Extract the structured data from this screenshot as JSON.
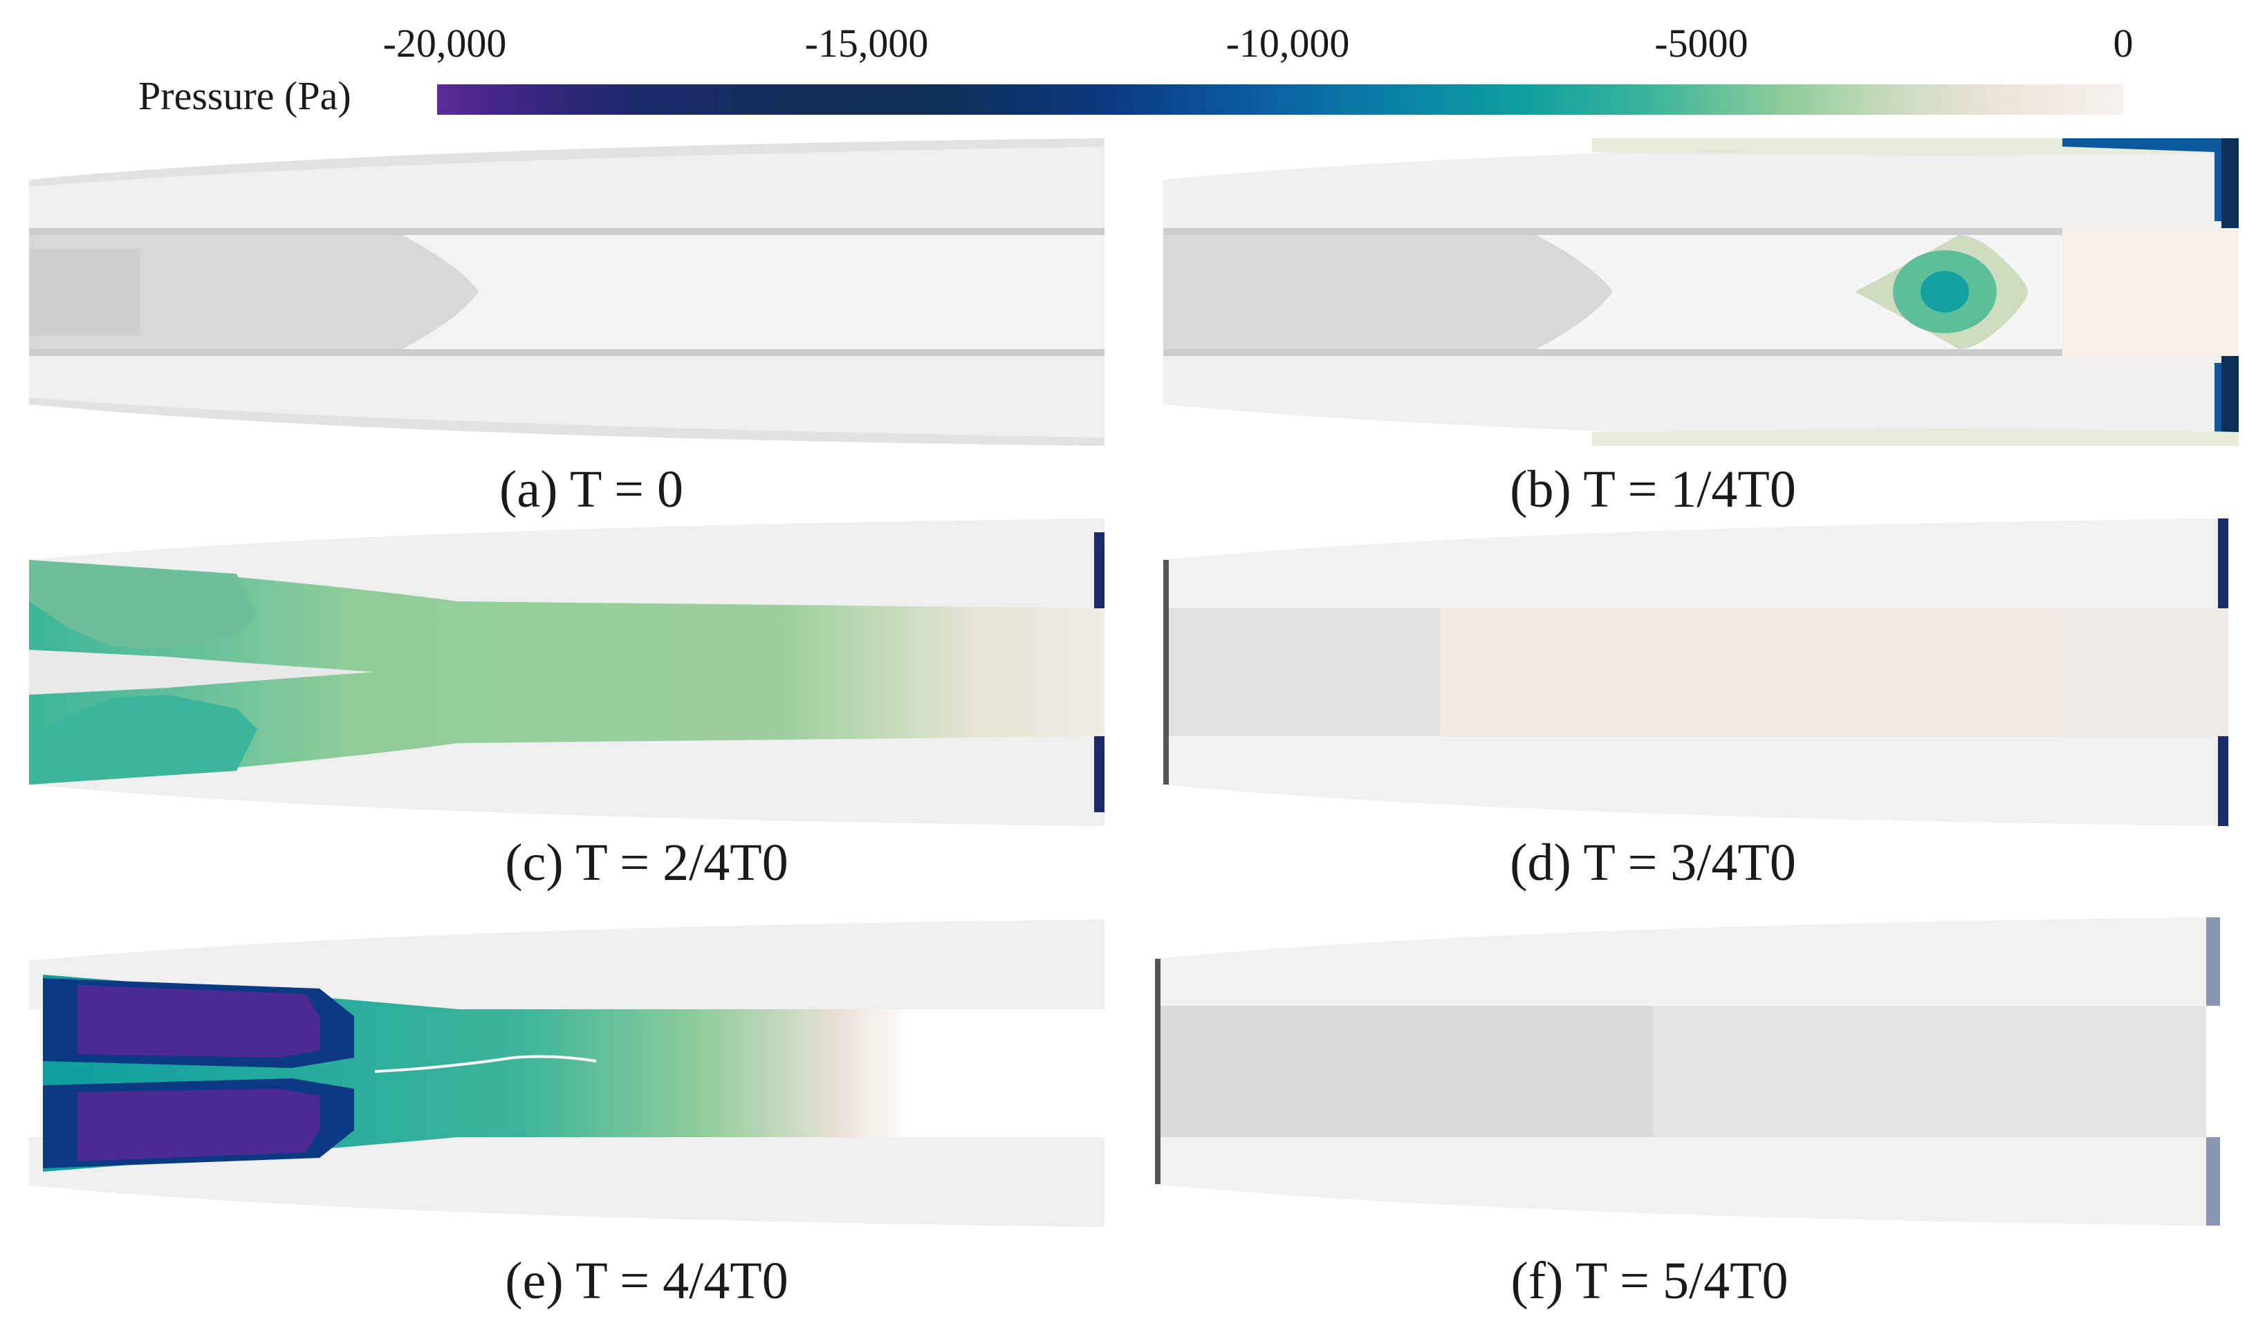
{
  "colorbar": {
    "label": "Pressure (Pa)",
    "ticks": [
      "-20,000",
      "-15,000",
      "-10,000",
      "-5000",
      "0"
    ]
  },
  "panels": [
    {
      "caption": "(a) T = 0"
    },
    {
      "caption": "(b) T = 1/4T0"
    },
    {
      "caption": "(c) T = 2/4T0"
    },
    {
      "caption": "(d) T = 3/4T0"
    },
    {
      "caption": "(e) T = 4/4T0"
    },
    {
      "caption": "(f) T = 5/4T0"
    }
  ]
}
